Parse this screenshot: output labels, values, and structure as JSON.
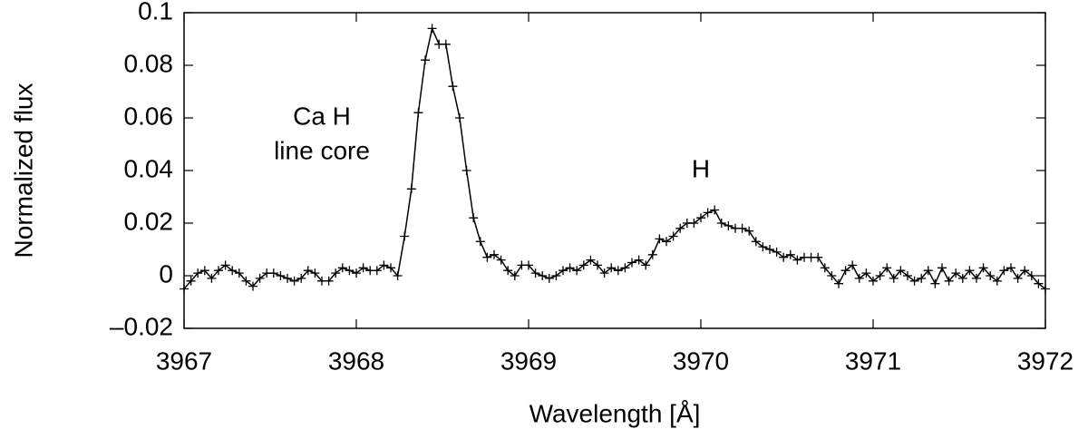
{
  "chart_data": {
    "type": "line",
    "xlabel": "Wavelength [Å]",
    "ylabel": "Normalized flux",
    "annotations": [
      "Ca H",
      "line core",
      "H"
    ],
    "xlim": [
      3967,
      3972
    ],
    "xticks": [
      3967,
      3968,
      3969,
      3970,
      3971,
      3972
    ],
    "ylim": [
      -0.02,
      0.1
    ],
    "yticks": [
      {
        "value": -0.02,
        "label": "–0.02"
      },
      0,
      0.02,
      0.04,
      0.06,
      0.08,
      0.1
    ],
    "x": [
      3967.0,
      3967.04,
      3967.08,
      3967.12,
      3967.16,
      3967.2,
      3967.24,
      3967.28,
      3967.32,
      3967.36,
      3967.4,
      3967.44,
      3967.48,
      3967.52,
      3967.56,
      3967.6,
      3967.64,
      3967.68,
      3967.72,
      3967.76,
      3967.8,
      3967.84,
      3967.88,
      3967.92,
      3967.96,
      3968.0,
      3968.04,
      3968.08,
      3968.12,
      3968.16,
      3968.2,
      3968.24,
      3968.28,
      3968.32,
      3968.36,
      3968.4,
      3968.44,
      3968.48,
      3968.52,
      3968.56,
      3968.6,
      3968.64,
      3968.68,
      3968.72,
      3968.76,
      3968.8,
      3968.84,
      3968.88,
      3968.92,
      3968.96,
      3969.0,
      3969.04,
      3969.08,
      3969.12,
      3969.16,
      3969.2,
      3969.24,
      3969.28,
      3969.32,
      3969.36,
      3969.4,
      3969.44,
      3969.48,
      3969.52,
      3969.56,
      3969.6,
      3969.64,
      3969.68,
      3969.72,
      3969.76,
      3969.8,
      3969.84,
      3969.88,
      3969.92,
      3969.96,
      3970.0,
      3970.04,
      3970.08,
      3970.12,
      3970.16,
      3970.2,
      3970.24,
      3970.28,
      3970.32,
      3970.36,
      3970.4,
      3970.44,
      3970.48,
      3970.52,
      3970.56,
      3970.6,
      3970.64,
      3970.68,
      3970.72,
      3970.76,
      3970.8,
      3970.84,
      3970.88,
      3970.92,
      3970.96,
      3971.0,
      3971.04,
      3971.08,
      3971.12,
      3971.16,
      3971.2,
      3971.24,
      3971.28,
      3971.32,
      3971.36,
      3971.4,
      3971.44,
      3971.48,
      3971.52,
      3971.56,
      3971.6,
      3971.64,
      3971.68,
      3971.72,
      3971.76,
      3971.8,
      3971.84,
      3971.88,
      3971.92,
      3971.96,
      3972.0
    ],
    "series": [
      {
        "color": "#000000",
        "marker": "+",
        "values": [
          -0.005,
          -0.002,
          0.001,
          0.002,
          -0.001,
          0.002,
          0.004,
          0.002,
          0.001,
          -0.002,
          -0.004,
          -0.001,
          0.001,
          0.001,
          0.0,
          -0.001,
          -0.002,
          -0.001,
          0.002,
          0.001,
          -0.002,
          -0.002,
          0.001,
          0.003,
          0.002,
          0.001,
          0.003,
          0.002,
          0.002,
          0.004,
          0.003,
          0.0,
          0.015,
          0.033,
          0.062,
          0.082,
          0.094,
          0.088,
          0.088,
          0.072,
          0.06,
          0.04,
          0.022,
          0.013,
          0.007,
          0.008,
          0.006,
          0.002,
          0.0,
          0.004,
          0.004,
          0.001,
          0.0,
          -0.001,
          0.0,
          0.002,
          0.003,
          0.002,
          0.004,
          0.006,
          0.004,
          0.001,
          0.003,
          0.002,
          0.003,
          0.005,
          0.006,
          0.004,
          0.008,
          0.014,
          0.013,
          0.015,
          0.018,
          0.02,
          0.02,
          0.022,
          0.024,
          0.025,
          0.02,
          0.019,
          0.018,
          0.018,
          0.017,
          0.013,
          0.011,
          0.01,
          0.009,
          0.007,
          0.008,
          0.006,
          0.007,
          0.007,
          0.007,
          0.003,
          0.0,
          -0.003,
          0.002,
          0.004,
          -0.001,
          0.001,
          -0.002,
          0.0,
          0.003,
          -0.001,
          0.002,
          0.0,
          -0.002,
          -0.001,
          0.002,
          -0.003,
          0.003,
          -0.002,
          0.001,
          -0.001,
          0.002,
          -0.001,
          0.003,
          0.0,
          -0.002,
          0.002,
          0.003,
          -0.001,
          0.002,
          0.0,
          -0.003,
          -0.005
        ]
      }
    ]
  }
}
